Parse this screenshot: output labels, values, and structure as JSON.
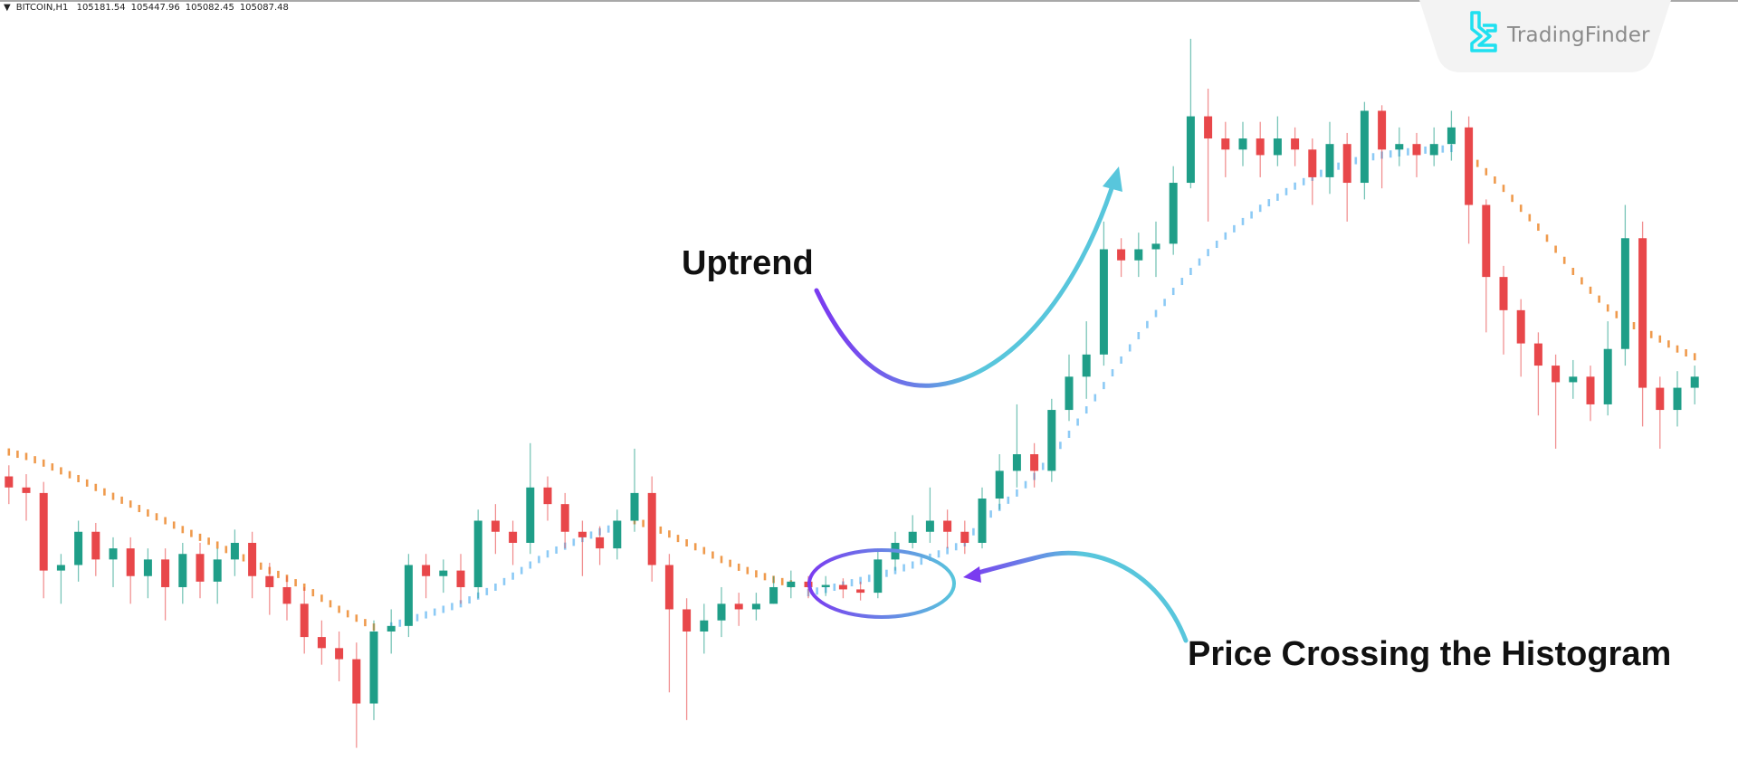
{
  "header": {
    "symbol": "BITCOIN,H1",
    "open": "105181.54",
    "high": "105447.96",
    "low": "105082.45",
    "close": "105087.48"
  },
  "logo": {
    "text": "TradingFinder",
    "color": "#1fe0f0"
  },
  "annotations": {
    "uptrend": "Uptrend",
    "crossing": "Price Crossing the Histogram"
  },
  "colors": {
    "bull": "#1f9e88",
    "bear": "#e8474a",
    "indicator_bull": "#8ccaf5",
    "indicator_bear": "#ef9a4c",
    "arrow_start": "#7a3cf0",
    "arrow_end": "#58c6dc"
  },
  "chart_data": {
    "type": "candlestick",
    "symbol": "BITCOIN",
    "timeframe": "H1",
    "ylim": [
      101740,
      108600
    ],
    "ohlc": [
      [
        104300,
        104400,
        104050,
        104200
      ],
      [
        104200,
        104320,
        103900,
        104150
      ],
      [
        104150,
        104250,
        103200,
        103450
      ],
      [
        103450,
        103600,
        103150,
        103500
      ],
      [
        103500,
        103900,
        103350,
        103800
      ],
      [
        103800,
        103880,
        103400,
        103550
      ],
      [
        103550,
        103750,
        103300,
        103650
      ],
      [
        103650,
        103750,
        103150,
        103400
      ],
      [
        103400,
        103650,
        103200,
        103550
      ],
      [
        103550,
        103650,
        103000,
        103300
      ],
      [
        103300,
        103700,
        103150,
        103600
      ],
      [
        103600,
        103700,
        103200,
        103350
      ],
      [
        103350,
        103650,
        103150,
        103550
      ],
      [
        103550,
        103820,
        103400,
        103700
      ],
      [
        103700,
        103800,
        103200,
        103400
      ],
      [
        103400,
        103520,
        103050,
        103300
      ],
      [
        103300,
        103400,
        103000,
        103150
      ],
      [
        103150,
        103300,
        102700,
        102850
      ],
      [
        102850,
        103000,
        102600,
        102750
      ],
      [
        102750,
        102900,
        102450,
        102650
      ],
      [
        102650,
        102800,
        101850,
        102250
      ],
      [
        102250,
        103000,
        102100,
        102900
      ],
      [
        102900,
        103100,
        102700,
        102950
      ],
      [
        102950,
        103600,
        102850,
        103500
      ],
      [
        103500,
        103600,
        103200,
        103400
      ],
      [
        103400,
        103550,
        103250,
        103450
      ],
      [
        103450,
        103600,
        103150,
        103300
      ],
      [
        103300,
        104000,
        103200,
        103900
      ],
      [
        103900,
        104050,
        103600,
        103800
      ],
      [
        103800,
        103900,
        103500,
        103700
      ],
      [
        103700,
        104600,
        103600,
        104200
      ],
      [
        104200,
        104300,
        103900,
        104050
      ],
      [
        104050,
        104150,
        103650,
        103800
      ],
      [
        103800,
        103900,
        103400,
        103750
      ],
      [
        103750,
        103850,
        103500,
        103650
      ],
      [
        103650,
        104000,
        103550,
        103900
      ],
      [
        103900,
        104550,
        103800,
        104150
      ],
      [
        104150,
        104300,
        103350,
        103500
      ],
      [
        103500,
        103600,
        102350,
        103100
      ],
      [
        103100,
        103200,
        102100,
        102900
      ],
      [
        102900,
        103150,
        102700,
        103000
      ],
      [
        103000,
        103300,
        102850,
        103150
      ],
      [
        103150,
        103250,
        102950,
        103100
      ],
      [
        103100,
        103250,
        103000,
        103150
      ],
      [
        103150,
        103400,
        103150,
        103300
      ],
      [
        103300,
        103450,
        103200,
        103350
      ],
      [
        103350,
        103400,
        103200,
        103300
      ],
      [
        103300,
        103400,
        103220,
        103320
      ],
      [
        103320,
        103380,
        103200,
        103280
      ],
      [
        103280,
        103350,
        103180,
        103250
      ],
      [
        103250,
        103650,
        103200,
        103550
      ],
      [
        103550,
        103800,
        103450,
        103700
      ],
      [
        103700,
        103950,
        103650,
        103800
      ],
      [
        103800,
        104200,
        103700,
        103900
      ],
      [
        103900,
        104000,
        103650,
        103800
      ],
      [
        103800,
        103900,
        103600,
        103700
      ],
      [
        103700,
        104200,
        103650,
        104100
      ],
      [
        104100,
        104500,
        104000,
        104350
      ],
      [
        104350,
        104950,
        104200,
        104500
      ],
      [
        104500,
        104600,
        104200,
        104350
      ],
      [
        104350,
        105000,
        104250,
        104900
      ],
      [
        104900,
        105400,
        104800,
        105200
      ],
      [
        105200,
        105700,
        105000,
        105400
      ],
      [
        105400,
        106600,
        105300,
        106350
      ],
      [
        106350,
        106450,
        106100,
        106250
      ],
      [
        106250,
        106500,
        106100,
        106350
      ],
      [
        106350,
        106600,
        106100,
        106400
      ],
      [
        106400,
        107100,
        106300,
        106950
      ],
      [
        106950,
        108250,
        106900,
        107550
      ],
      [
        107550,
        107800,
        106600,
        107350
      ],
      [
        107350,
        107500,
        107000,
        107250
      ],
      [
        107250,
        107500,
        107100,
        107350
      ],
      [
        107350,
        107500,
        107000,
        107200
      ],
      [
        107200,
        107550,
        107100,
        107350
      ],
      [
        107350,
        107450,
        107100,
        107250
      ],
      [
        107250,
        107350,
        106750,
        107000
      ],
      [
        107000,
        107500,
        106850,
        107300
      ],
      [
        107300,
        107400,
        106600,
        106950
      ],
      [
        106950,
        107680,
        106800,
        107600
      ],
      [
        107600,
        107650,
        106900,
        107250
      ],
      [
        107250,
        107450,
        107100,
        107300
      ],
      [
        107300,
        107400,
        107000,
        107200
      ],
      [
        107200,
        107450,
        107100,
        107300
      ],
      [
        107300,
        107600,
        107150,
        107450
      ],
      [
        107450,
        107550,
        106400,
        106750
      ],
      [
        106750,
        106800,
        105600,
        106100
      ],
      [
        106100,
        106200,
        105400,
        105800
      ],
      [
        105800,
        105900,
        105200,
        105500
      ],
      [
        105500,
        105600,
        104850,
        105300
      ],
      [
        105300,
        105400,
        104550,
        105150
      ],
      [
        105150,
        105350,
        105000,
        105200
      ],
      [
        105200,
        105300,
        104800,
        104950
      ],
      [
        104950,
        105700,
        104850,
        105450
      ],
      [
        105450,
        106750,
        105300,
        106450
      ],
      [
        106450,
        106600,
        104750,
        105100
      ],
      [
        105100,
        105200,
        104550,
        104900
      ],
      [
        104900,
        105250,
        104750,
        105100
      ],
      [
        105100,
        105300,
        104950,
        105200
      ]
    ],
    "indicator": [
      104520,
      104480,
      104420,
      104350,
      104280,
      104200,
      104120,
      104050,
      103970,
      103900,
      103820,
      103750,
      103680,
      103600,
      103530,
      103450,
      103380,
      103300,
      103200,
      103100,
      103020,
      102940,
      102950,
      103000,
      103050,
      103100,
      103150,
      103220,
      103300,
      103400,
      103500,
      103600,
      103670,
      103740,
      103800,
      103850,
      103900,
      103850,
      103780,
      103700,
      103630,
      103550,
      103480,
      103420,
      103370,
      103330,
      103250,
      103280,
      103320,
      103360,
      103400,
      103450,
      103500,
      103570,
      103630,
      103700,
      103900,
      104020,
      104150,
      104300,
      104480,
      104680,
      104900,
      105120,
      105350,
      105570,
      105770,
      105970,
      106150,
      106320,
      106470,
      106600,
      106720,
      106820,
      106920,
      107000,
      107070,
      107130,
      107170,
      107200,
      107220,
      107240,
      107250,
      107260,
      107200,
      107050,
      106900,
      106720,
      106550,
      106350,
      106150,
      105980,
      105820,
      105700,
      105620,
      105540,
      105450,
      105380
    ],
    "bearish_ranges": [
      [
        0,
        21
      ],
      [
        36,
        45
      ],
      [
        84,
        97
      ]
    ]
  }
}
